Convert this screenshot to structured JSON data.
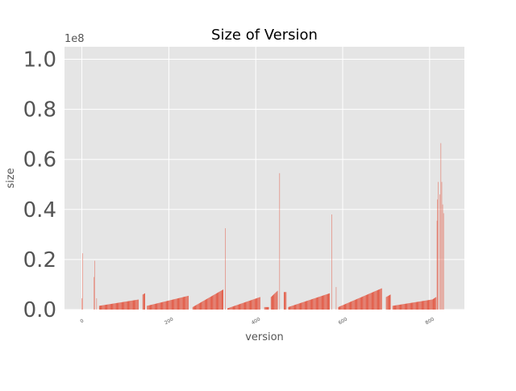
{
  "chart_data": {
    "type": "bar",
    "title": "Size of Version",
    "xlabel": "version",
    "ylabel": "size",
    "y_offset_label": "1e8",
    "xlim": [
      -40,
      880
    ],
    "ylim": [
      0,
      1.0
    ],
    "y_scale_note": "values in units of 1e8",
    "yticks": [
      "0.0",
      "0.2",
      "0.4",
      "0.6",
      "0.8",
      "1.0"
    ],
    "xticks": [
      "0",
      "200",
      "400",
      "600",
      "800"
    ],
    "grid": true,
    "bar_color": "#E24A33",
    "background": "#E5E5E5",
    "series": [
      {
        "spikes": [
          {
            "x": 0,
            "value": 0.045
          },
          {
            "x": 2,
            "value": 0.225
          },
          {
            "x": 28,
            "value": 0.13
          },
          {
            "x": 30,
            "value": 0.195
          },
          {
            "x": 34,
            "value": 0.045
          },
          {
            "x": 330,
            "value": 0.325
          },
          {
            "x": 455,
            "value": 0.545
          },
          {
            "x": 575,
            "value": 0.38
          },
          {
            "x": 585,
            "value": 0.09
          },
          {
            "x": 817,
            "value": 0.355
          },
          {
            "x": 818,
            "value": 0.44
          },
          {
            "x": 820,
            "value": 0.51
          },
          {
            "x": 823,
            "value": 0.46
          },
          {
            "x": 826,
            "value": 0.665
          },
          {
            "x": 828,
            "value": 0.51
          },
          {
            "x": 830,
            "value": 0.42
          },
          {
            "x": 832,
            "value": 0.385
          }
        ],
        "segments": [
          {
            "x_start": 40,
            "x_end": 130,
            "v_start": 0.015,
            "v_end": 0.04
          },
          {
            "x_start": 140,
            "x_end": 145,
            "v_start": 0.06,
            "v_end": 0.065
          },
          {
            "x_start": 150,
            "x_end": 245,
            "v_start": 0.015,
            "v_end": 0.055
          },
          {
            "x_start": 255,
            "x_end": 325,
            "v_start": 0.01,
            "v_end": 0.08
          },
          {
            "x_start": 335,
            "x_end": 410,
            "v_start": 0.005,
            "v_end": 0.05
          },
          {
            "x_start": 420,
            "x_end": 430,
            "v_start": 0.01,
            "v_end": 0.01
          },
          {
            "x_start": 435,
            "x_end": 450,
            "v_start": 0.05,
            "v_end": 0.075
          },
          {
            "x_start": 465,
            "x_end": 470,
            "v_start": 0.07,
            "v_end": 0.07
          },
          {
            "x_start": 475,
            "x_end": 570,
            "v_start": 0.01,
            "v_end": 0.065
          },
          {
            "x_start": 590,
            "x_end": 690,
            "v_start": 0.01,
            "v_end": 0.085
          },
          {
            "x_start": 700,
            "x_end": 710,
            "v_start": 0.05,
            "v_end": 0.06
          },
          {
            "x_start": 715,
            "x_end": 805,
            "v_start": 0.015,
            "v_end": 0.04
          },
          {
            "x_start": 806,
            "x_end": 815,
            "v_start": 0.04,
            "v_end": 0.05
          }
        ]
      }
    ]
  }
}
